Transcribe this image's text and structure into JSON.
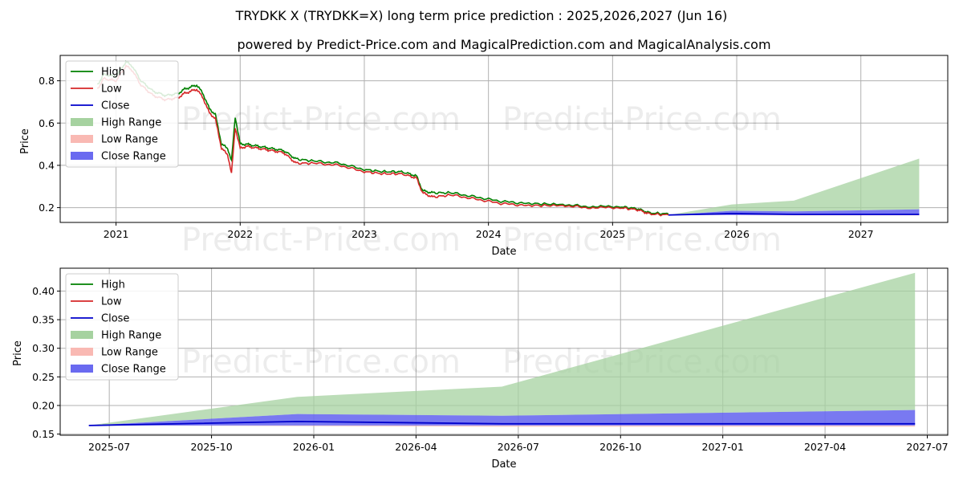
{
  "title": "TRYDKK X (TRYDKK=X) long term price prediction : 2025,2026,2027 (Jun 16)",
  "subtitle": "powered by Predict-Price.com and MagicalPrediction.com and MagicalAnalysis.com",
  "watermark": "Predict-Price.com",
  "colors": {
    "high": "#008000",
    "low": "#d62728",
    "close": "#0000cc",
    "high_range": "#a6d2a0",
    "low_range": "#f9b9b3",
    "close_range": "#6a6af0",
    "grid": "#b0b0b0"
  },
  "legend": [
    {
      "key": "high",
      "label": "High",
      "kind": "line"
    },
    {
      "key": "low",
      "label": "Low",
      "kind": "line"
    },
    {
      "key": "close",
      "label": "Close",
      "kind": "line"
    },
    {
      "key": "high_range",
      "label": "High Range",
      "kind": "patch"
    },
    {
      "key": "low_range",
      "label": "Low Range",
      "kind": "patch"
    },
    {
      "key": "close_range",
      "label": "Close Range",
      "kind": "patch"
    }
  ],
  "chart_data": [
    {
      "type": "line",
      "xlabel": "Date",
      "ylabel": "Price",
      "xlim": [
        2020.55,
        2027.7
      ],
      "ylim": [
        0.13,
        0.92
      ],
      "grid": true,
      "legend_position": "upper-left",
      "x_ticks": [
        {
          "v": 2021,
          "label": "2021"
        },
        {
          "v": 2022,
          "label": "2022"
        },
        {
          "v": 2023,
          "label": "2023"
        },
        {
          "v": 2024,
          "label": "2024"
        },
        {
          "v": 2025,
          "label": "2025"
        },
        {
          "v": 2026,
          "label": "2026"
        },
        {
          "v": 2027,
          "label": "2027"
        }
      ],
      "y_ticks": [
        {
          "v": 0.2,
          "label": "0.2"
        },
        {
          "v": 0.4,
          "label": "0.4"
        },
        {
          "v": 0.6,
          "label": "0.6"
        },
        {
          "v": 0.8,
          "label": "0.8"
        }
      ],
      "history": {
        "x": [
          2020.85,
          2020.9,
          2021.0,
          2021.08,
          2021.13,
          2021.2,
          2021.3,
          2021.4,
          2021.5,
          2021.55,
          2021.6,
          2021.65,
          2021.7,
          2021.75,
          2021.8,
          2021.85,
          2021.9,
          2021.93,
          2021.96,
          2022.0,
          2022.05,
          2022.15,
          2022.25,
          2022.35,
          2022.45,
          2022.6,
          2022.8,
          2023.0,
          2023.15,
          2023.3,
          2023.42,
          2023.47,
          2023.55,
          2023.7,
          2023.9,
          2024.1,
          2024.3,
          2024.6,
          2024.8,
          2025.05,
          2025.2,
          2025.3,
          2025.45
        ],
        "low": [
          0.76,
          0.81,
          0.8,
          0.87,
          0.85,
          0.78,
          0.73,
          0.71,
          0.72,
          0.74,
          0.75,
          0.76,
          0.72,
          0.65,
          0.62,
          0.48,
          0.45,
          0.36,
          0.58,
          0.48,
          0.49,
          0.48,
          0.47,
          0.46,
          0.41,
          0.41,
          0.4,
          0.37,
          0.36,
          0.36,
          0.34,
          0.27,
          0.25,
          0.26,
          0.24,
          0.22,
          0.21,
          0.21,
          0.2,
          0.2,
          0.19,
          0.17,
          0.165
        ],
        "high": [
          0.78,
          0.83,
          0.82,
          0.89,
          0.87,
          0.8,
          0.75,
          0.73,
          0.74,
          0.76,
          0.77,
          0.78,
          0.74,
          0.67,
          0.64,
          0.5,
          0.48,
          0.42,
          0.63,
          0.5,
          0.5,
          0.49,
          0.48,
          0.47,
          0.43,
          0.42,
          0.41,
          0.38,
          0.37,
          0.37,
          0.35,
          0.28,
          0.27,
          0.27,
          0.25,
          0.23,
          0.22,
          0.215,
          0.205,
          0.205,
          0.195,
          0.175,
          0.17
        ]
      },
      "forecast": {
        "x": [
          2025.45,
          2025.96,
          2026.46,
          2027.47
        ],
        "high": [
          0.165,
          0.215,
          0.233,
          0.432
        ],
        "low": [
          0.165,
          0.164,
          0.163,
          0.163
        ],
        "close_upper": [
          0.165,
          0.185,
          0.182,
          0.192
        ],
        "close_lower": [
          0.165,
          0.165,
          0.165,
          0.165
        ],
        "close": [
          0.165,
          0.172,
          0.168,
          0.168
        ]
      }
    },
    {
      "type": "line",
      "xlabel": "Date",
      "ylabel": "Price",
      "xlim": [
        2025.38,
        2027.55
      ],
      "ylim": [
        0.148,
        0.44
      ],
      "grid": true,
      "legend_position": "upper-left",
      "x_ticks": [
        {
          "v": 2025.5,
          "label": "2025-07"
        },
        {
          "v": 2025.75,
          "label": "2025-10"
        },
        {
          "v": 2026.0,
          "label": "2026-01"
        },
        {
          "v": 2026.25,
          "label": "2026-04"
        },
        {
          "v": 2026.5,
          "label": "2026-07"
        },
        {
          "v": 2026.75,
          "label": "2026-10"
        },
        {
          "v": 2027.0,
          "label": "2027-01"
        },
        {
          "v": 2027.25,
          "label": "2027-04"
        },
        {
          "v": 2027.5,
          "label": "2027-07"
        }
      ],
      "y_ticks": [
        {
          "v": 0.15,
          "label": "0.15"
        },
        {
          "v": 0.2,
          "label": "0.20"
        },
        {
          "v": 0.25,
          "label": "0.25"
        },
        {
          "v": 0.3,
          "label": "0.30"
        },
        {
          "v": 0.35,
          "label": "0.35"
        },
        {
          "v": 0.4,
          "label": "0.40"
        }
      ],
      "forecast": {
        "x": [
          2025.45,
          2025.96,
          2026.46,
          2027.47
        ],
        "high": [
          0.165,
          0.215,
          0.233,
          0.432
        ],
        "low": [
          0.165,
          0.164,
          0.163,
          0.163
        ],
        "close_upper": [
          0.165,
          0.185,
          0.182,
          0.192
        ],
        "close_lower": [
          0.165,
          0.165,
          0.165,
          0.165
        ],
        "close": [
          0.165,
          0.172,
          0.168,
          0.168
        ]
      }
    }
  ]
}
